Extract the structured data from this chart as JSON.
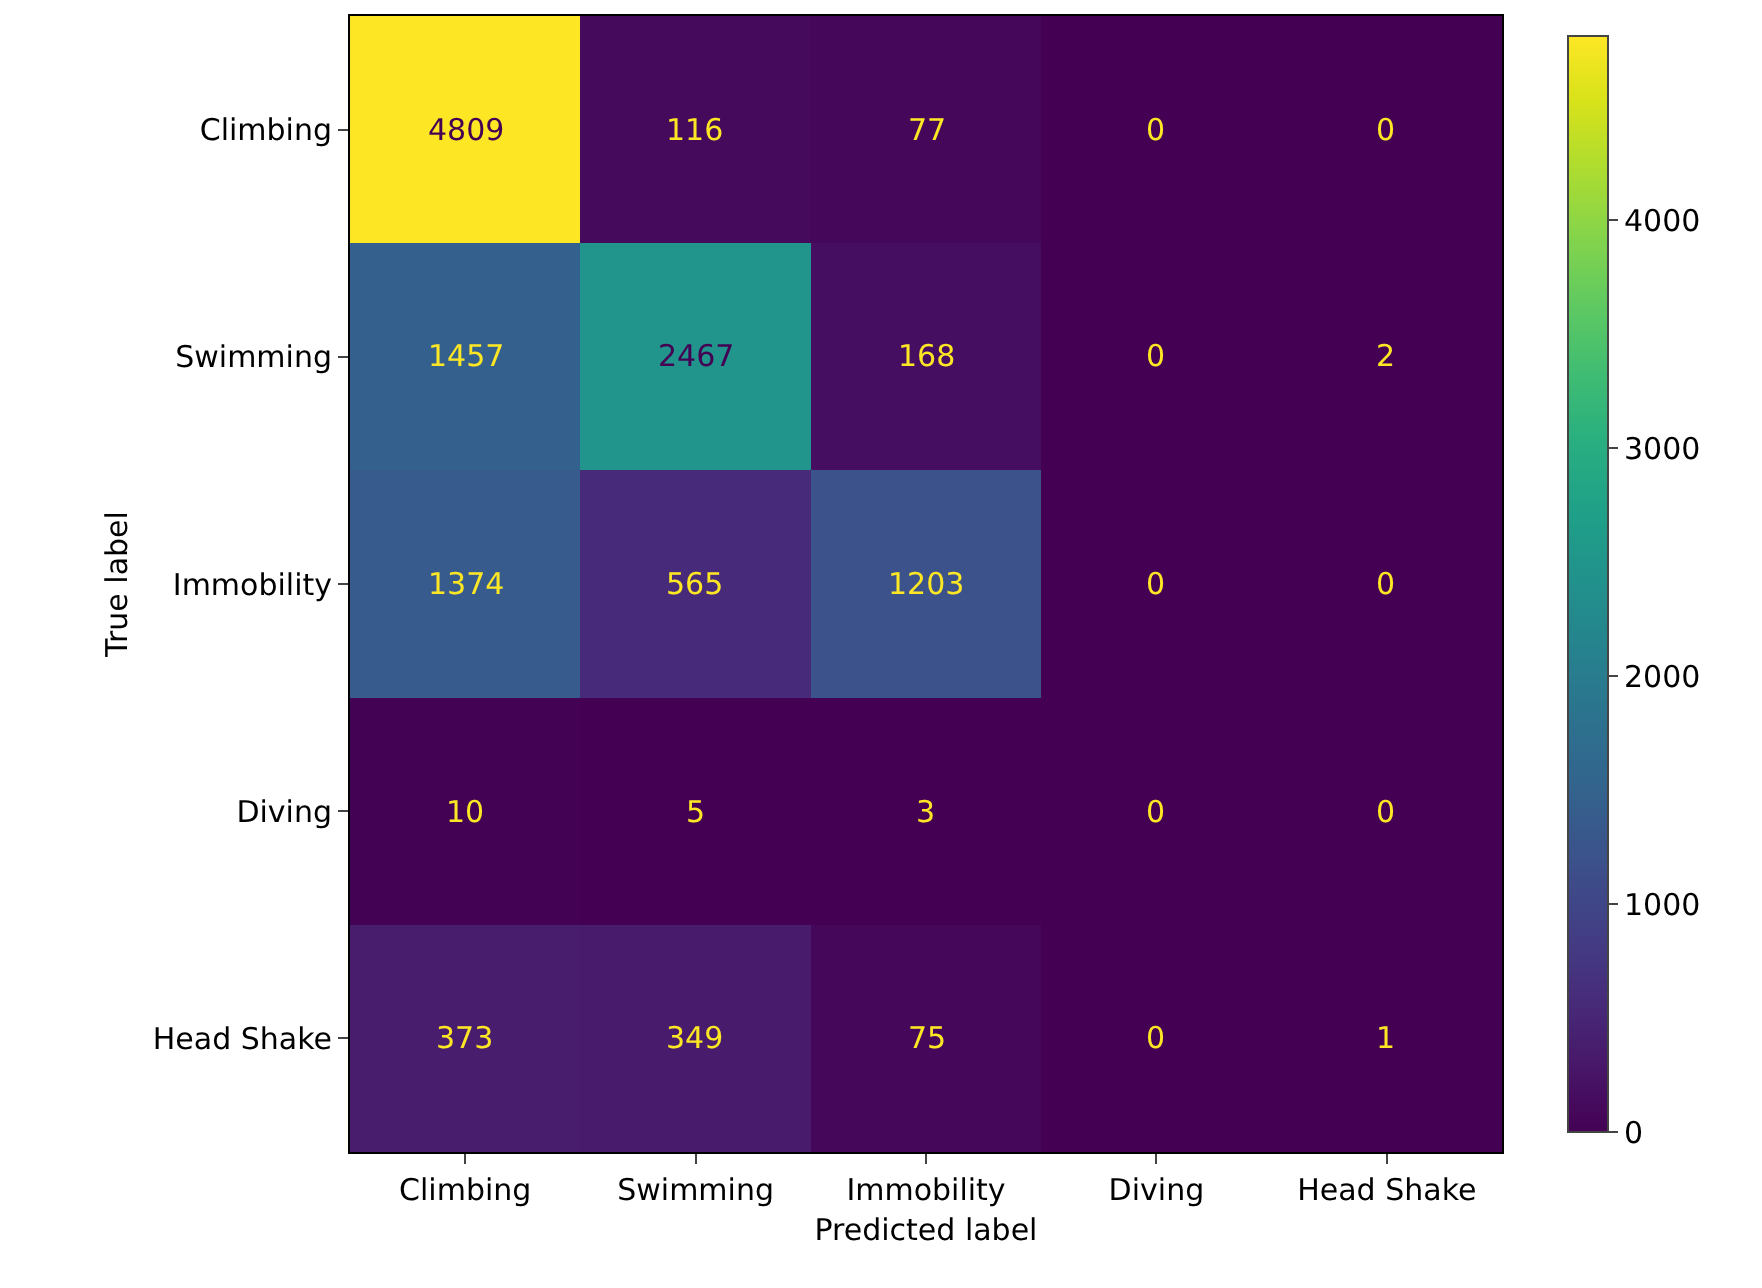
{
  "chart_data": {
    "type": "heatmap",
    "xlabel": "Predicted label",
    "ylabel": "True label",
    "categories": [
      "Climbing",
      "Swimming",
      "Immobility",
      "Diving",
      "Head Shake"
    ],
    "y_categories": [
      "Climbing",
      "Swimming",
      "Immobility",
      "Diving",
      "Head Shake"
    ],
    "cells": [
      [
        4809,
        116,
        77,
        0,
        0
      ],
      [
        1457,
        2467,
        168,
        0,
        2
      ],
      [
        1374,
        565,
        1203,
        0,
        0
      ],
      [
        10,
        5,
        3,
        0,
        0
      ],
      [
        373,
        349,
        75,
        0,
        1
      ]
    ],
    "clim": [
      0,
      4809
    ],
    "cticks": [
      0,
      1000,
      2000,
      3000,
      4000
    ],
    "data_labels": true
  }
}
